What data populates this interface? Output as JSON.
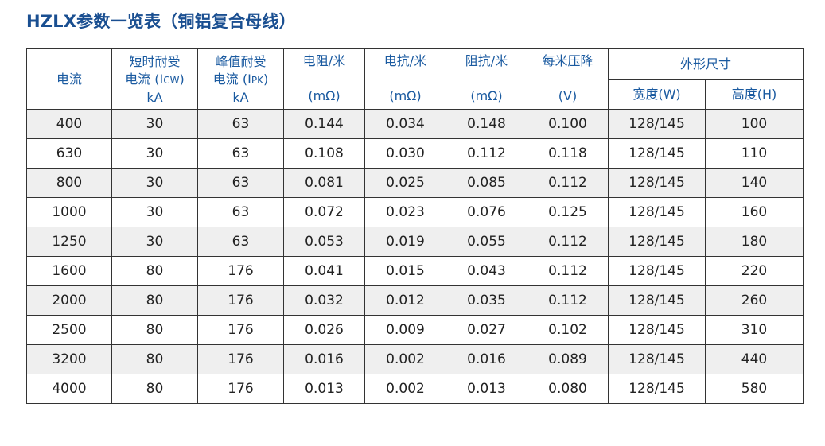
{
  "title": "HZLX参数一览表（铜铝复合母线）",
  "headers": {
    "current": "电流",
    "short_time": {
      "line1": "短时耐受",
      "line2_main": "电流 (I",
      "line2_sub": "CW",
      "line2_end": ")",
      "unit": "kA"
    },
    "peak": {
      "line1": "峰值耐受",
      "line2_main": "电流 (I",
      "line2_sub": "PK",
      "line2_end": ")",
      "unit": "kA"
    },
    "resistance": {
      "label": "电阻/米",
      "unit": "(mΩ)"
    },
    "reactance": {
      "label": "电抗/米",
      "unit": "(mΩ)"
    },
    "impedance": {
      "label": "阻抗/米",
      "unit": "(mΩ)"
    },
    "voltage_drop": {
      "label": "每米压降",
      "unit": "(V)"
    },
    "dimensions": {
      "label": "外形尺寸",
      "width": "宽度(W)",
      "height": "高度(H)"
    }
  },
  "rows": [
    {
      "current": "400",
      "icw": "30",
      "ipk": "63",
      "r": "0.144",
      "x": "0.034",
      "z": "0.148",
      "v": "0.100",
      "w": "128/145",
      "h": "100"
    },
    {
      "current": "630",
      "icw": "30",
      "ipk": "63",
      "r": "0.108",
      "x": "0.030",
      "z": "0.112",
      "v": "0.118",
      "w": "128/145",
      "h": "110"
    },
    {
      "current": "800",
      "icw": "30",
      "ipk": "63",
      "r": "0.081",
      "x": "0.025",
      "z": "0.085",
      "v": "0.112",
      "w": "128/145",
      "h": "140"
    },
    {
      "current": "1000",
      "icw": "30",
      "ipk": "63",
      "r": "0.072",
      "x": "0.023",
      "z": "0.076",
      "v": "0.125",
      "w": "128/145",
      "h": "160"
    },
    {
      "current": "1250",
      "icw": "30",
      "ipk": "63",
      "r": "0.053",
      "x": "0.019",
      "z": "0.055",
      "v": "0.112",
      "w": "128/145",
      "h": "180"
    },
    {
      "current": "1600",
      "icw": "80",
      "ipk": "176",
      "r": "0.041",
      "x": "0.015",
      "z": "0.043",
      "v": "0.112",
      "w": "128/145",
      "h": "220"
    },
    {
      "current": "2000",
      "icw": "80",
      "ipk": "176",
      "r": "0.032",
      "x": "0.012",
      "z": "0.035",
      "v": "0.112",
      "w": "128/145",
      "h": "260"
    },
    {
      "current": "2500",
      "icw": "80",
      "ipk": "176",
      "r": "0.026",
      "x": "0.009",
      "z": "0.027",
      "v": "0.102",
      "w": "128/145",
      "h": "310"
    },
    {
      "current": "3200",
      "icw": "80",
      "ipk": "176",
      "r": "0.016",
      "x": "0.002",
      "z": "0.016",
      "v": "0.089",
      "w": "128/145",
      "h": "440"
    },
    {
      "current": "4000",
      "icw": "80",
      "ipk": "176",
      "r": "0.013",
      "x": "0.002",
      "z": "0.013",
      "v": "0.080",
      "w": "128/145",
      "h": "580"
    }
  ]
}
